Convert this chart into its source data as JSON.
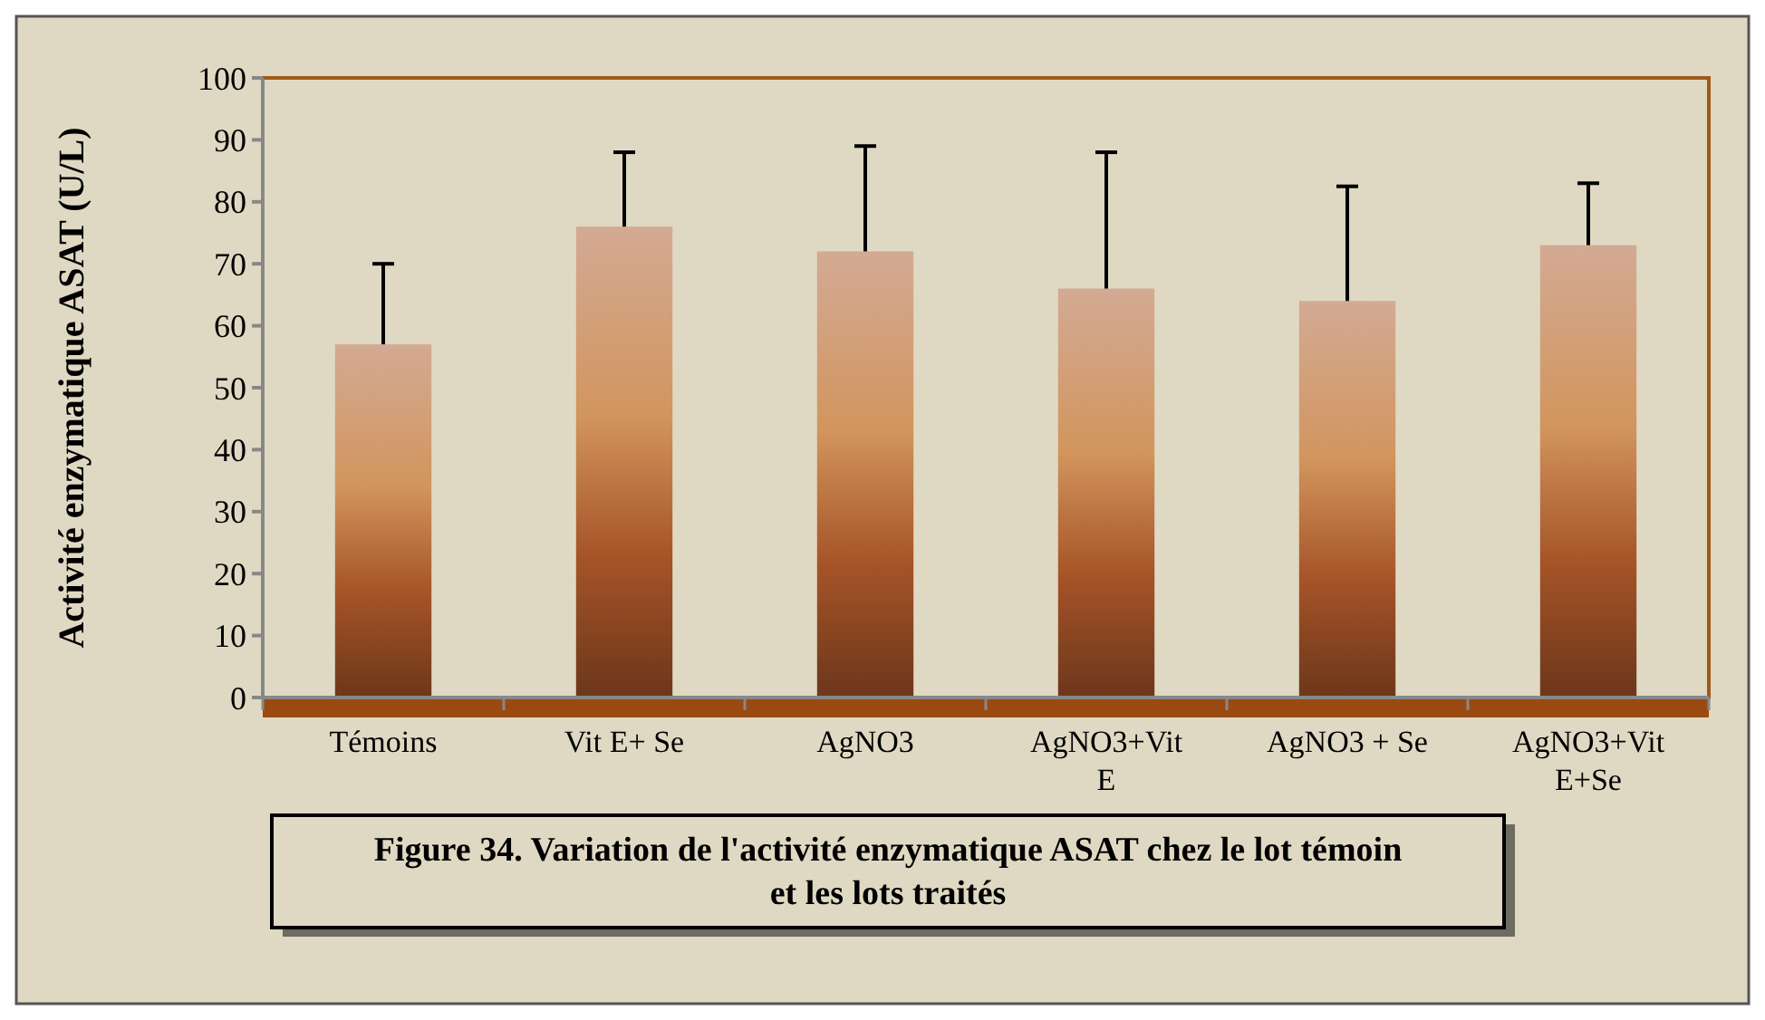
{
  "chart_data": {
    "type": "bar",
    "title": "Figure 34. Variation de l'activité enzymatique ASAT chez le lot témoin et les lots traités",
    "ylabel": "Activité enzymatique ASAT (U/L)",
    "categories": [
      "Témoins",
      "Vit E+ Se",
      "AgNO3",
      "AgNO3+Vit E",
      "AgNO3 + Se",
      "AgNO3+Vit E+Se"
    ],
    "values": [
      57,
      76,
      72,
      66,
      64,
      73
    ],
    "errors": [
      [
        57,
        70
      ],
      [
        76,
        88
      ],
      [
        72,
        89
      ],
      [
        66,
        88
      ],
      [
        64,
        82.5
      ],
      [
        73,
        83
      ]
    ],
    "color": "#a65428",
    "ylim": [
      0,
      100
    ],
    "yticks": [
      0,
      10,
      20,
      30,
      40,
      50,
      60,
      70,
      80,
      90,
      100
    ],
    "grid": false
  }
}
